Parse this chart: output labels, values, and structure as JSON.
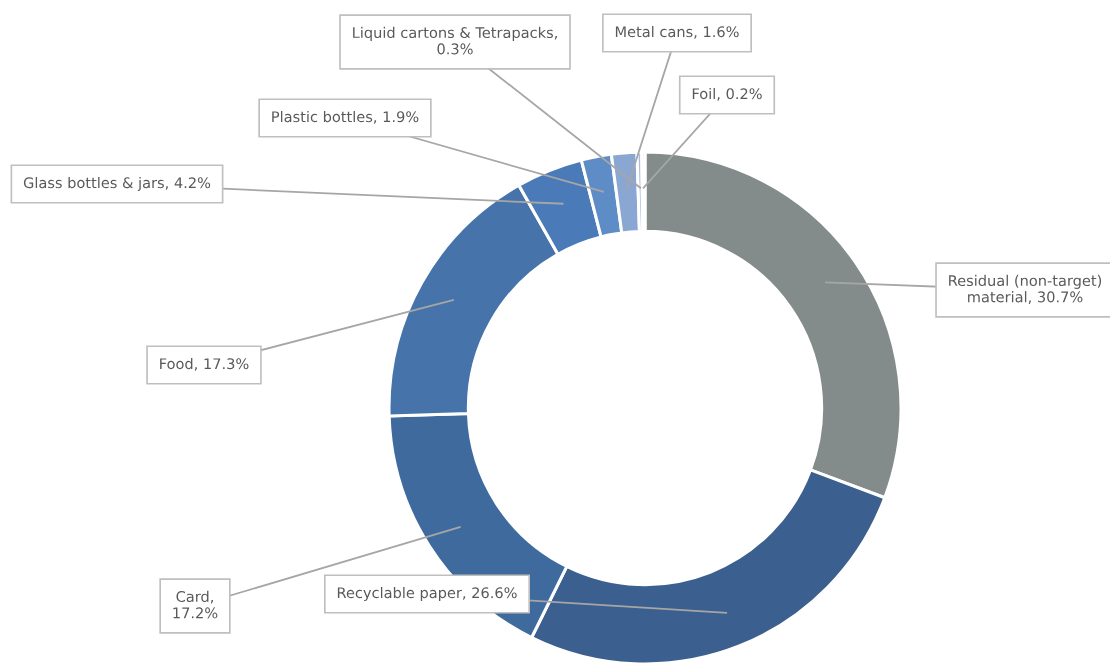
{
  "chart_data": {
    "type": "donut",
    "categories": [
      "Residual (non-target) material, 30.7%",
      "Recyclable paper, 26.6%",
      "Card, 17.2%",
      "Food, 17.3%",
      "Glass bottles & jars, 4.2%",
      "Plastic bottles, 1.9%",
      "Metal cans, 1.6%",
      "Liquid cartons & Tetrapacks, 0.3%",
      "Foil, 0.2%"
    ],
    "values": [
      30.7,
      26.6,
      17.2,
      17.3,
      4.2,
      1.9,
      1.6,
      0.3,
      0.2
    ],
    "colors": [
      "#848b8b",
      "#3b5f8e",
      "#3f6a9e",
      "#4673aa",
      "#4a7bb8",
      "#5e8cc6",
      "#8aa6d2",
      "#a9bfe0",
      "#c4d3ea"
    ]
  }
}
